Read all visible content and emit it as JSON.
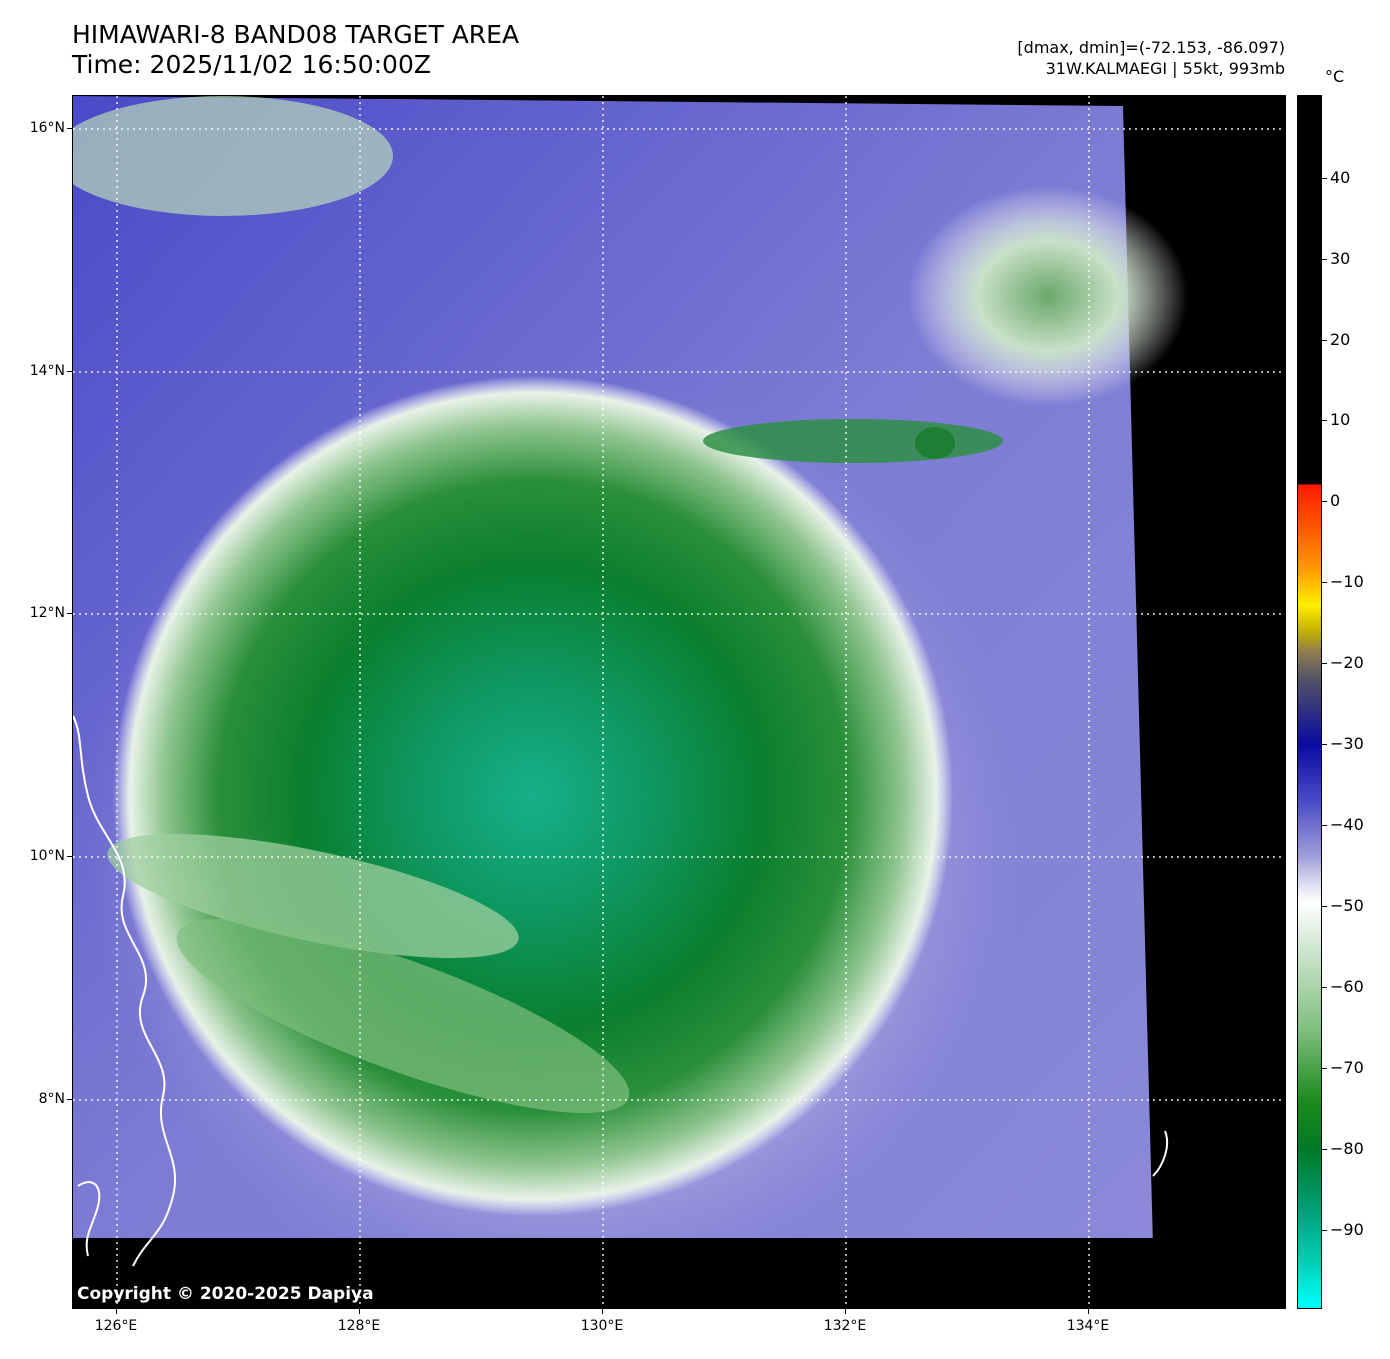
{
  "header": {
    "title": "HIMAWARI-8 BAND08 TARGET AREA",
    "time": "Time: 2025/11/02 16:50:00Z",
    "range_text": "[dmax, dmin]=(-72.153, -86.097)",
    "storm_text": "31W.KALMAEGI | 55kt, 993mb"
  },
  "map": {
    "lat_labels": [
      "16°N",
      "14°N",
      "12°N",
      "10°N",
      "8°N"
    ],
    "lon_labels": [
      "126°E",
      "128°E",
      "130°E",
      "132°E",
      "134°E"
    ],
    "copyright": "Copyright © 2020-2025 Dapiya"
  },
  "colorbar": {
    "unit": "°C",
    "labels": [
      "40",
      "30",
      "20",
      "10",
      "0",
      "−10",
      "−20",
      "−30",
      "−40",
      "−50",
      "−60",
      "−70",
      "−80",
      "−90"
    ],
    "colors": {
      "warm_top": "#000000",
      "red": "#ff1a00",
      "yellow": "#ffee00",
      "blue": "#0a0aa0",
      "lavender": "#9a9ad8",
      "white": "#ffffff",
      "green": "#007a28",
      "cyan": "#00ffff"
    }
  }
}
